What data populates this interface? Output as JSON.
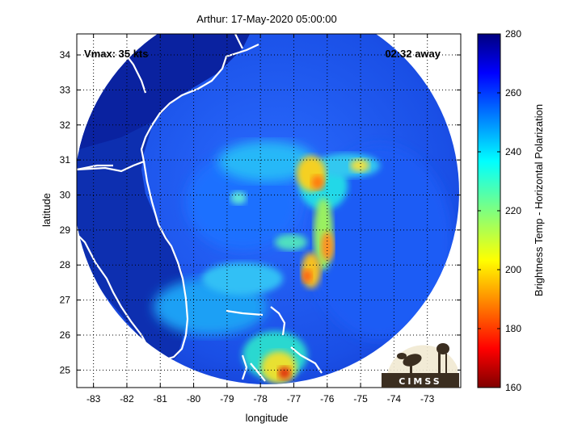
{
  "title": "Arthur: 17-May-2020 05:00:00",
  "annotations": {
    "vmax": "Vmax: 35 kts",
    "time_away": "02:32 away"
  },
  "axes": {
    "xlabel": "longitude",
    "ylabel": "latitude",
    "xlim": [
      -83.5,
      -72.0
    ],
    "ylim": [
      24.5,
      34.6
    ],
    "xticks": [
      "-83",
      "-82",
      "-81",
      "-80",
      "-79",
      "-78",
      "-77",
      "-76",
      "-75",
      "-74",
      "-73"
    ],
    "yticks": [
      "25",
      "26",
      "27",
      "28",
      "29",
      "30",
      "31",
      "32",
      "33",
      "34"
    ],
    "grid": true
  },
  "colorbar": {
    "label": "Brightness Temp - Horizontal Polarization",
    "ticks": [
      "280",
      "260",
      "240",
      "220",
      "200",
      "180",
      "160"
    ],
    "range": [
      160,
      280
    ]
  },
  "logo": {
    "text": "CIMSS"
  },
  "colors": {
    "cold": "#7f0000",
    "warm": "#00007f",
    "background": "#ffffff"
  }
}
